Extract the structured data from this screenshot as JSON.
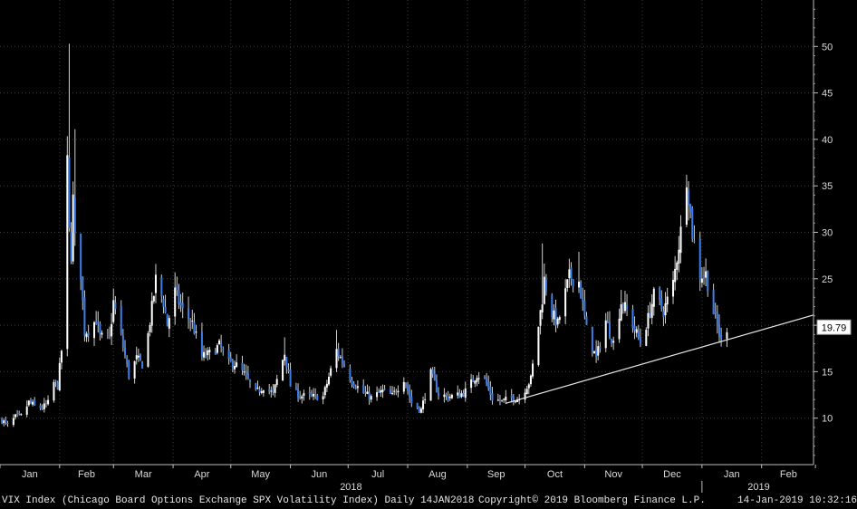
{
  "chart_data": {
    "type": "candlestick",
    "title": "",
    "ylim": [
      5,
      55
    ],
    "y_ticks": [
      10,
      15,
      20,
      25,
      30,
      35,
      40,
      45,
      50
    ],
    "x_months": [
      "Jan",
      "Feb",
      "Mar",
      "Apr",
      "May",
      "Jun",
      "Jul",
      "Aug",
      "Sep",
      "Oct",
      "Nov",
      "Dec",
      "Jan",
      "Feb"
    ],
    "x_years": [
      "2018",
      "2019"
    ],
    "last_value": "19.79",
    "trendline": {
      "start": [
        "2018-09-21",
        11.6
      ],
      "end": [
        "2019-02-28",
        21.1
      ]
    },
    "close_path": [
      [
        "2018-01-02",
        9.8
      ],
      [
        "2018-01-05",
        9.2
      ],
      [
        "2018-01-09",
        10.1
      ],
      [
        "2018-01-12",
        10.2
      ],
      [
        "2018-01-16",
        11.7
      ],
      [
        "2018-01-19",
        11.3
      ],
      [
        "2018-01-23",
        11.1
      ],
      [
        "2018-01-26",
        11.6
      ],
      [
        "2018-01-29",
        13.8
      ],
      [
        "2018-01-31",
        13.5
      ],
      [
        "2018-02-02",
        17.3
      ],
      [
        "2018-02-05",
        37.3
      ],
      [
        "2018-02-06",
        29.9
      ],
      [
        "2018-02-07",
        27.7
      ],
      [
        "2018-02-08",
        33.5
      ],
      [
        "2018-02-09",
        29.1
      ],
      [
        "2018-02-12",
        25.6
      ],
      [
        "2018-02-14",
        19.3
      ],
      [
        "2018-02-16",
        19.5
      ],
      [
        "2018-02-20",
        20.6
      ],
      [
        "2018-02-22",
        18.7
      ],
      [
        "2018-02-27",
        18.6
      ],
      [
        "2018-03-01",
        22.5
      ],
      [
        "2018-03-05",
        18.7
      ],
      [
        "2018-03-09",
        14.6
      ],
      [
        "2018-03-13",
        16.4
      ],
      [
        "2018-03-16",
        15.8
      ],
      [
        "2018-03-19",
        19.0
      ],
      [
        "2018-03-22",
        23.3
      ],
      [
        "2018-03-23",
        24.9
      ],
      [
        "2018-03-27",
        22.5
      ],
      [
        "2018-03-29",
        20.0
      ],
      [
        "2018-04-02",
        23.6
      ],
      [
        "2018-04-06",
        21.5
      ],
      [
        "2018-04-11",
        20.2
      ],
      [
        "2018-04-16",
        16.6
      ],
      [
        "2018-04-20",
        16.9
      ],
      [
        "2018-04-25",
        17.8
      ],
      [
        "2018-04-30",
        15.9
      ],
      [
        "2018-05-03",
        15.9
      ],
      [
        "2018-05-08",
        14.7
      ],
      [
        "2018-05-14",
        12.7
      ],
      [
        "2018-05-18",
        13.4
      ],
      [
        "2018-05-23",
        12.6
      ],
      [
        "2018-05-29",
        17.0
      ],
      [
        "2018-06-01",
        13.5
      ],
      [
        "2018-06-06",
        12.4
      ],
      [
        "2018-06-12",
        12.3
      ],
      [
        "2018-06-18",
        12.3
      ],
      [
        "2018-06-25",
        17.3
      ],
      [
        "2018-06-28",
        16.1
      ],
      [
        "2018-07-03",
        14.0
      ],
      [
        "2018-07-09",
        12.7
      ],
      [
        "2018-07-13",
        12.2
      ],
      [
        "2018-07-19",
        12.9
      ],
      [
        "2018-07-24",
        12.4
      ],
      [
        "2018-07-30",
        14.3
      ],
      [
        "2018-08-03",
        11.6
      ],
      [
        "2018-08-08",
        10.9
      ],
      [
        "2018-08-13",
        14.8
      ],
      [
        "2018-08-17",
        12.6
      ],
      [
        "2018-08-22",
        12.3
      ],
      [
        "2018-08-28",
        12.5
      ],
      [
        "2018-08-31",
        12.9
      ],
      [
        "2018-09-06",
        14.7
      ],
      [
        "2018-09-10",
        14.2
      ],
      [
        "2018-09-14",
        12.1
      ],
      [
        "2018-09-19",
        11.8
      ],
      [
        "2018-09-24",
        12.2
      ],
      [
        "2018-09-28",
        12.1
      ],
      [
        "2018-10-04",
        14.2
      ],
      [
        "2018-10-10",
        22.9
      ],
      [
        "2018-10-11",
        24.9
      ],
      [
        "2018-10-15",
        21.3
      ],
      [
        "2018-10-18",
        20.1
      ],
      [
        "2018-10-24",
        25.2
      ],
      [
        "2018-10-29",
        24.7
      ],
      [
        "2018-11-02",
        19.5
      ],
      [
        "2018-11-07",
        16.4
      ],
      [
        "2018-11-12",
        20.5
      ],
      [
        "2018-11-16",
        18.1
      ],
      [
        "2018-11-20",
        22.5
      ],
      [
        "2018-11-23",
        21.5
      ],
      [
        "2018-11-30",
        18.1
      ],
      [
        "2018-12-04",
        20.7
      ],
      [
        "2018-12-07",
        23.2
      ],
      [
        "2018-12-12",
        21.5
      ],
      [
        "2018-12-17",
        24.5
      ],
      [
        "2018-12-21",
        30.1
      ],
      [
        "2018-12-24",
        36.1
      ],
      [
        "2018-12-27",
        29.9
      ],
      [
        "2018-12-31",
        25.4
      ],
      [
        "2019-01-03",
        25.5
      ],
      [
        "2019-01-07",
        21.4
      ],
      [
        "2019-01-11",
        18.2
      ],
      [
        "2019-01-14",
        19.8
      ]
    ],
    "spikes": [
      [
        "2018-02-06",
        50.3
      ],
      [
        "2018-02-09",
        41.1
      ],
      [
        "2018-03-23",
        26.6
      ],
      [
        "2018-04-02",
        25.7
      ],
      [
        "2018-05-29",
        18.7
      ],
      [
        "2018-06-25",
        19.5
      ],
      [
        "2018-10-10",
        28.8
      ],
      [
        "2018-10-29",
        27.9
      ],
      [
        "2018-11-20",
        23.8
      ],
      [
        "2018-12-24",
        36.2
      ]
    ]
  },
  "footer": {
    "description": "VIX Index (Chicago Board Options Exchange SPX Volatility Index)  Daily 14JAN2018",
    "copyright": "Copyright© 2019 Bloomberg Finance L.P.",
    "timestamp": "14-Jan-2019 10:32:16"
  }
}
